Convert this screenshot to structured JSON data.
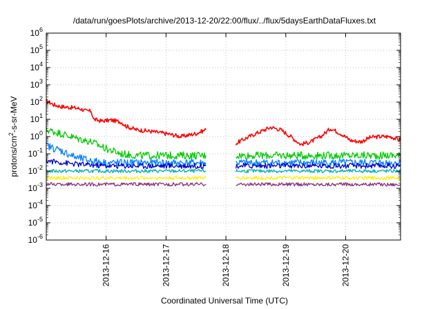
{
  "chart_data": {
    "type": "line",
    "title": "/data/run/goesPlots/archive/2013-12-20/22:00/flux/../flux/5daysEarthDataFluxes.txt",
    "xlabel": "Coordinated Universal Time (UTC)",
    "ylabel_parts": [
      "protons/cm",
      "2",
      "-s-sr-MeV"
    ],
    "yscale": "log",
    "ylim": [
      1e-06,
      1000000.0
    ],
    "y_tick_exponents": [
      -6,
      -5,
      -4,
      -3,
      -2,
      -1,
      0,
      1,
      2,
      3,
      4,
      5,
      6
    ],
    "y_tick_base": "10",
    "xlim": [
      "2013-12-15T00:00",
      "2013-12-20T22:00"
    ],
    "x_ticks": [
      "2013-12-16",
      "2013-12-17",
      "2013-12-18",
      "2013-12-19",
      "2013-12-20"
    ],
    "grid": true,
    "data_gap": [
      "2013-12-17T16:00",
      "2013-12-18T04:00"
    ],
    "series": [
      {
        "color": "#ff0000",
        "points": [
          [
            "2013-12-15T00:00",
            120
          ],
          [
            "2013-12-15T03:00",
            70
          ],
          [
            "2013-12-15T06:00",
            55
          ],
          [
            "2013-12-15T09:00",
            50
          ],
          [
            "2013-12-15T12:00",
            45
          ],
          [
            "2013-12-15T14:00",
            40
          ],
          [
            "2013-12-15T16:00",
            30
          ],
          [
            "2013-12-15T18:00",
            30
          ],
          [
            "2013-12-15T19:00",
            10
          ],
          [
            "2013-12-15T22:00",
            8
          ],
          [
            "2013-12-16T02:00",
            9
          ],
          [
            "2013-12-16T06:00",
            7
          ],
          [
            "2013-12-16T08:00",
            4
          ],
          [
            "2013-12-16T12:00",
            2.5
          ],
          [
            "2013-12-16T18:00",
            2.0
          ],
          [
            "2013-12-17T00:00",
            1.5
          ],
          [
            "2013-12-17T06:00",
            1.0
          ],
          [
            "2013-12-17T12:00",
            1.5
          ],
          [
            "2013-12-17T16:00",
            2.5
          ],
          null,
          [
            "2013-12-18T04:00",
            0.4
          ],
          [
            "2013-12-18T08:00",
            0.8
          ],
          [
            "2013-12-18T12:00",
            1.5
          ],
          [
            "2013-12-18T18:00",
            3.5
          ],
          [
            "2013-12-18T22:00",
            2.5
          ],
          [
            "2013-12-19T02:00",
            1.0
          ],
          [
            "2013-12-19T06:00",
            0.35
          ],
          [
            "2013-12-19T10:00",
            0.5
          ],
          [
            "2013-12-19T14:00",
            1.0
          ],
          [
            "2013-12-19T18:00",
            3.0
          ],
          [
            "2013-12-19T22:00",
            1.5
          ],
          [
            "2013-12-20T02:00",
            0.6
          ],
          [
            "2013-12-20T06:00",
            0.5
          ],
          [
            "2013-12-20T10:00",
            0.9
          ],
          [
            "2013-12-20T14:00",
            1.0
          ],
          [
            "2013-12-20T18:00",
            1.0
          ],
          [
            "2013-12-20T22:00",
            0.6
          ]
        ]
      },
      {
        "color": "#00cc00",
        "points": [
          [
            "2013-12-15T00:00",
            2.5
          ],
          [
            "2013-12-15T06:00",
            1.5
          ],
          [
            "2013-12-15T12:00",
            0.8
          ],
          [
            "2013-12-15T18:00",
            0.5
          ],
          [
            "2013-12-16T00:00",
            0.2
          ],
          [
            "2013-12-16T06:00",
            0.1
          ],
          [
            "2013-12-16T12:00",
            0.08
          ],
          [
            "2013-12-17T00:00",
            0.08
          ],
          [
            "2013-12-17T16:00",
            0.08
          ],
          null,
          [
            "2013-12-18T04:00",
            0.08
          ],
          [
            "2013-12-19T00:00",
            0.08
          ],
          [
            "2013-12-20T00:00",
            0.08
          ],
          [
            "2013-12-20T22:00",
            0.08
          ]
        ]
      },
      {
        "color": "#0080ff",
        "points": [
          [
            "2013-12-15T00:00",
            0.3
          ],
          [
            "2013-12-15T06:00",
            0.15
          ],
          [
            "2013-12-15T12:00",
            0.06
          ],
          [
            "2013-12-15T18:00",
            0.04
          ],
          [
            "2013-12-16T00:00",
            0.03
          ],
          [
            "2013-12-17T16:00",
            0.03
          ],
          null,
          [
            "2013-12-18T04:00",
            0.03
          ],
          [
            "2013-12-20T22:00",
            0.03
          ]
        ]
      },
      {
        "color": "#0000cc",
        "points": [
          [
            "2013-12-15T00:00",
            0.04
          ],
          [
            "2013-12-15T12:00",
            0.025
          ],
          [
            "2013-12-16T00:00",
            0.02
          ],
          [
            "2013-12-17T16:00",
            0.02
          ],
          null,
          [
            "2013-12-18T04:00",
            0.02
          ],
          [
            "2013-12-20T22:00",
            0.02
          ]
        ]
      },
      {
        "color": "#00b0b0",
        "points": [
          [
            "2013-12-15T00:00",
            0.01
          ],
          [
            "2013-12-17T16:00",
            0.01
          ],
          null,
          [
            "2013-12-18T04:00",
            0.01
          ],
          [
            "2013-12-20T22:00",
            0.01
          ]
        ]
      },
      {
        "color": "#ffee00",
        "points": [
          [
            "2013-12-15T00:00",
            0.004
          ],
          [
            "2013-12-17T16:00",
            0.004
          ],
          null,
          [
            "2013-12-18T04:00",
            0.004
          ],
          [
            "2013-12-20T22:00",
            0.004
          ]
        ]
      },
      {
        "color": "#883080",
        "points": [
          [
            "2013-12-15T00:00",
            0.0017
          ],
          [
            "2013-12-17T16:00",
            0.0017
          ],
          null,
          [
            "2013-12-18T04:00",
            0.0017
          ],
          [
            "2013-12-20T22:00",
            0.0017
          ]
        ]
      }
    ]
  }
}
